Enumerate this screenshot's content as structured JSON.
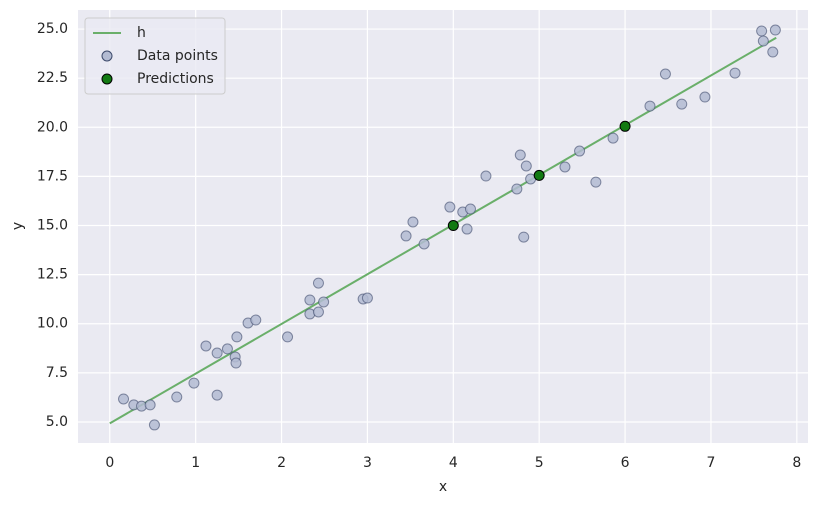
{
  "chart_data": {
    "type": "scatter",
    "x_label": "x",
    "y_label": "y",
    "xlim": [
      -0.37,
      8.13
    ],
    "ylim": [
      3.93,
      25.97
    ],
    "xticks": [
      0,
      1,
      2,
      3,
      4,
      5,
      6,
      7,
      8
    ],
    "yticks": [
      {
        "value": 5,
        "label": "5.0"
      },
      {
        "value": 7.5,
        "label": "7.5"
      },
      {
        "value": 10,
        "label": "10.0"
      },
      {
        "value": 12.5,
        "label": "12.5"
      },
      {
        "value": 15,
        "label": "15.0"
      },
      {
        "value": 17.5,
        "label": "17.5"
      },
      {
        "value": 20,
        "label": "20.0"
      },
      {
        "value": 22.5,
        "label": "22.5"
      },
      {
        "value": 25,
        "label": "25.0"
      }
    ],
    "grid": true,
    "legend": "upper left",
    "series": [
      {
        "name": "h",
        "type": "line",
        "color": "#6aaf6a",
        "x": [
          0,
          7.76
        ],
        "values": [
          4.93,
          24.56
        ]
      },
      {
        "name": "Data points",
        "type": "scatter",
        "color": "#b3bbd2",
        "x": [
          0.16,
          0.28,
          0.37,
          0.47,
          0.52,
          0.78,
          0.98,
          1.12,
          1.25,
          1.25,
          1.37,
          1.46,
          1.47,
          1.48,
          1.61,
          1.7,
          2.07,
          2.33,
          2.33,
          2.43,
          2.43,
          2.49,
          2.95,
          3.0,
          3.45,
          3.53,
          3.66,
          3.96,
          4.11,
          4.2,
          4.16,
          4.38,
          4.74,
          4.78,
          4.82,
          4.85,
          4.9,
          5.3,
          5.47,
          5.66,
          5.86,
          6.29,
          6.47,
          6.66,
          6.93,
          7.28,
          7.59,
          7.61,
          7.72,
          7.75
        ],
        "values": [
          6.17,
          5.87,
          5.81,
          5.87,
          4.85,
          6.27,
          6.98,
          8.87,
          8.51,
          6.37,
          8.72,
          8.31,
          8.0,
          9.33,
          10.04,
          10.19,
          9.33,
          10.5,
          11.21,
          12.07,
          10.6,
          11.11,
          11.26,
          11.31,
          14.47,
          15.18,
          14.06,
          15.94,
          15.69,
          15.84,
          14.82,
          17.52,
          16.86,
          18.59,
          14.41,
          18.03,
          17.37,
          17.98,
          18.79,
          17.21,
          19.45,
          21.08,
          22.71,
          21.18,
          21.54,
          22.76,
          24.9,
          24.39,
          23.83,
          24.95
        ]
      },
      {
        "name": "Predictions",
        "type": "scatter",
        "color": "#127a12",
        "x": [
          4,
          5,
          6
        ],
        "values": [
          15.0,
          17.55,
          20.05
        ]
      }
    ]
  }
}
